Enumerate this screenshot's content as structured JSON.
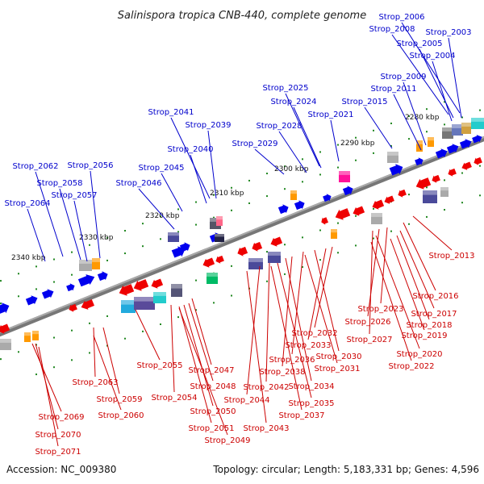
{
  "title": "Salinispora tropica CNB-440, complete genome",
  "footer": {
    "accession": "Accession: NC_009380",
    "summary": "Topology: circular; Length: 5,183,331 bp; Genes: 4,596"
  },
  "colors": {
    "forward_label": "#0000cc",
    "reverse_label": "#cc0000",
    "forward_gene": "#0000ee",
    "reverse_gene": "#ee0000",
    "backbone": "#888888",
    "tick": "#228822"
  },
  "kbp_marks": [
    {
      "label": "2280 kbp"
    },
    {
      "label": "2290 kbp"
    },
    {
      "label": "2300 kbp"
    },
    {
      "label": "2310 kbp"
    },
    {
      "label": "2320 kbp"
    },
    {
      "label": "2330 kbp"
    },
    {
      "label": "2340 kbp"
    }
  ],
  "forward_labels": [
    "Strop_2006",
    "Strop_2008",
    "Strop_2003",
    "Strop_2005",
    "Strop_2004",
    "Strop_2009",
    "Strop_2011",
    "Strop_2025",
    "Strop_2024",
    "Strop_2015",
    "Strop_2021",
    "Strop_2028",
    "Strop_2041",
    "Strop_2039",
    "Strop_2029",
    "Strop_2040",
    "Strop_2062",
    "Strop_2056",
    "Strop_2045",
    "Strop_2058",
    "Strop_2046",
    "Strop_2057",
    "Strop_2064"
  ],
  "reverse_labels": [
    "Strop_2013",
    "Strop_2016",
    "Strop_2017",
    "Strop_2023",
    "Strop_2018",
    "Strop_2026",
    "Strop_2019",
    "Strop_2027",
    "Strop_2032",
    "Strop_2033",
    "Strop_2020",
    "Strop_2030",
    "Strop_2036",
    "Strop_2022",
    "Strop_2031",
    "Strop_2038",
    "Strop_2055",
    "Strop_2047",
    "Strop_2034",
    "Strop_2063",
    "Strop_2048",
    "Strop_2042",
    "Strop_2035",
    "Strop_2054",
    "Strop_2044",
    "Strop_2059",
    "Strop_2050",
    "Strop_2037",
    "Strop_2060",
    "Strop_2069",
    "Strop_2051",
    "Strop_2043",
    "Strop_2049",
    "Strop_2070",
    "Strop_2071"
  ]
}
